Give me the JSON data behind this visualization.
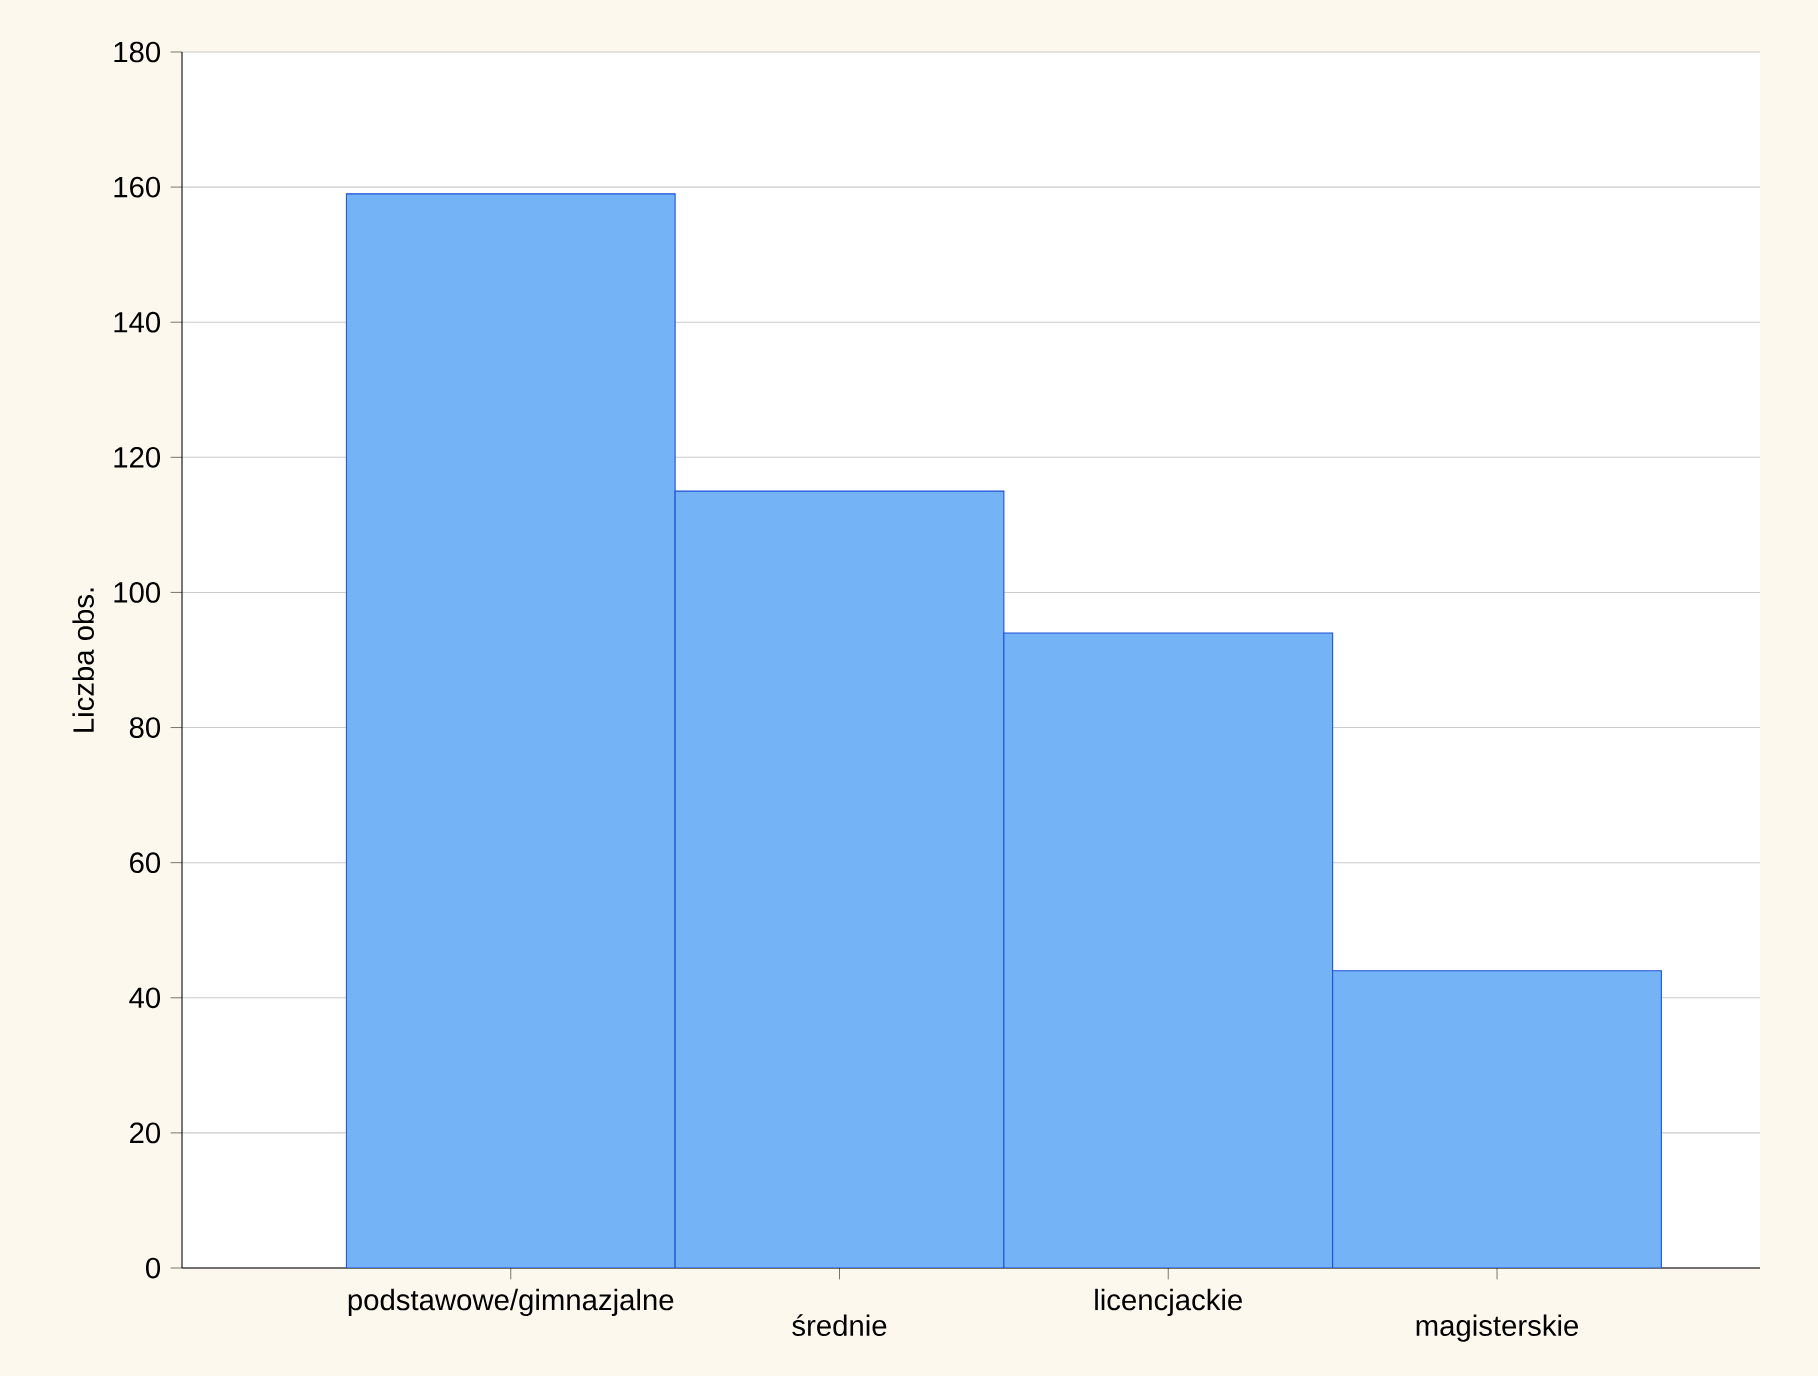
{
  "chart_data": {
    "type": "bar",
    "ylabel": "Liczba obs.",
    "categories": [
      "podstawowe/gimnazjalne",
      "średnie",
      "licencjackie",
      "magisterskie"
    ],
    "values": [
      159,
      115,
      94,
      44
    ],
    "color": "#74b4f6",
    "ylim": [
      0,
      180
    ],
    "yticks": [
      0,
      20,
      40,
      60,
      80,
      100,
      120,
      140,
      160,
      180
    ],
    "grid": "y"
  }
}
